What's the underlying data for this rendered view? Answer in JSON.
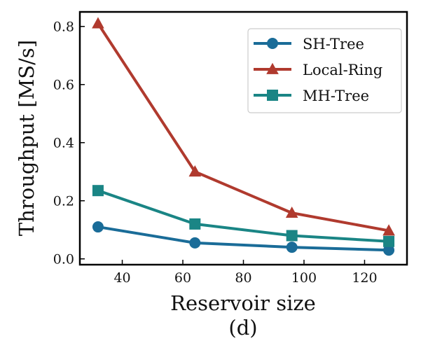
{
  "chart_data": {
    "type": "line",
    "title": "",
    "xlabel": "Reservoir size",
    "ylabel": "Throughput [MS/s]",
    "caption": "(d)",
    "x": [
      32,
      64,
      96,
      128
    ],
    "xlim": [
      26,
      134
    ],
    "ylim": [
      -0.02,
      0.85
    ],
    "xticks": [
      40,
      60,
      80,
      100,
      120
    ],
    "yticks": [
      0.0,
      0.2,
      0.4,
      0.6,
      0.8
    ],
    "xtick_labels": [
      "40",
      "60",
      "80",
      "100",
      "120"
    ],
    "ytick_labels": [
      "0.0",
      "0.2",
      "0.4",
      "0.6",
      "0.8"
    ],
    "legend_position": "top-right",
    "series": [
      {
        "name": "SH-Tree",
        "values": [
          0.11,
          0.055,
          0.04,
          0.03
        ],
        "color": "#1a6c98",
        "marker": "circle"
      },
      {
        "name": "Local-Ring",
        "values": [
          0.81,
          0.3,
          0.158,
          0.097
        ],
        "color": "#b03a2e",
        "marker": "triangle"
      },
      {
        "name": "MH-Tree",
        "values": [
          0.235,
          0.12,
          0.08,
          0.06
        ],
        "color": "#1a8585",
        "marker": "square"
      }
    ]
  }
}
